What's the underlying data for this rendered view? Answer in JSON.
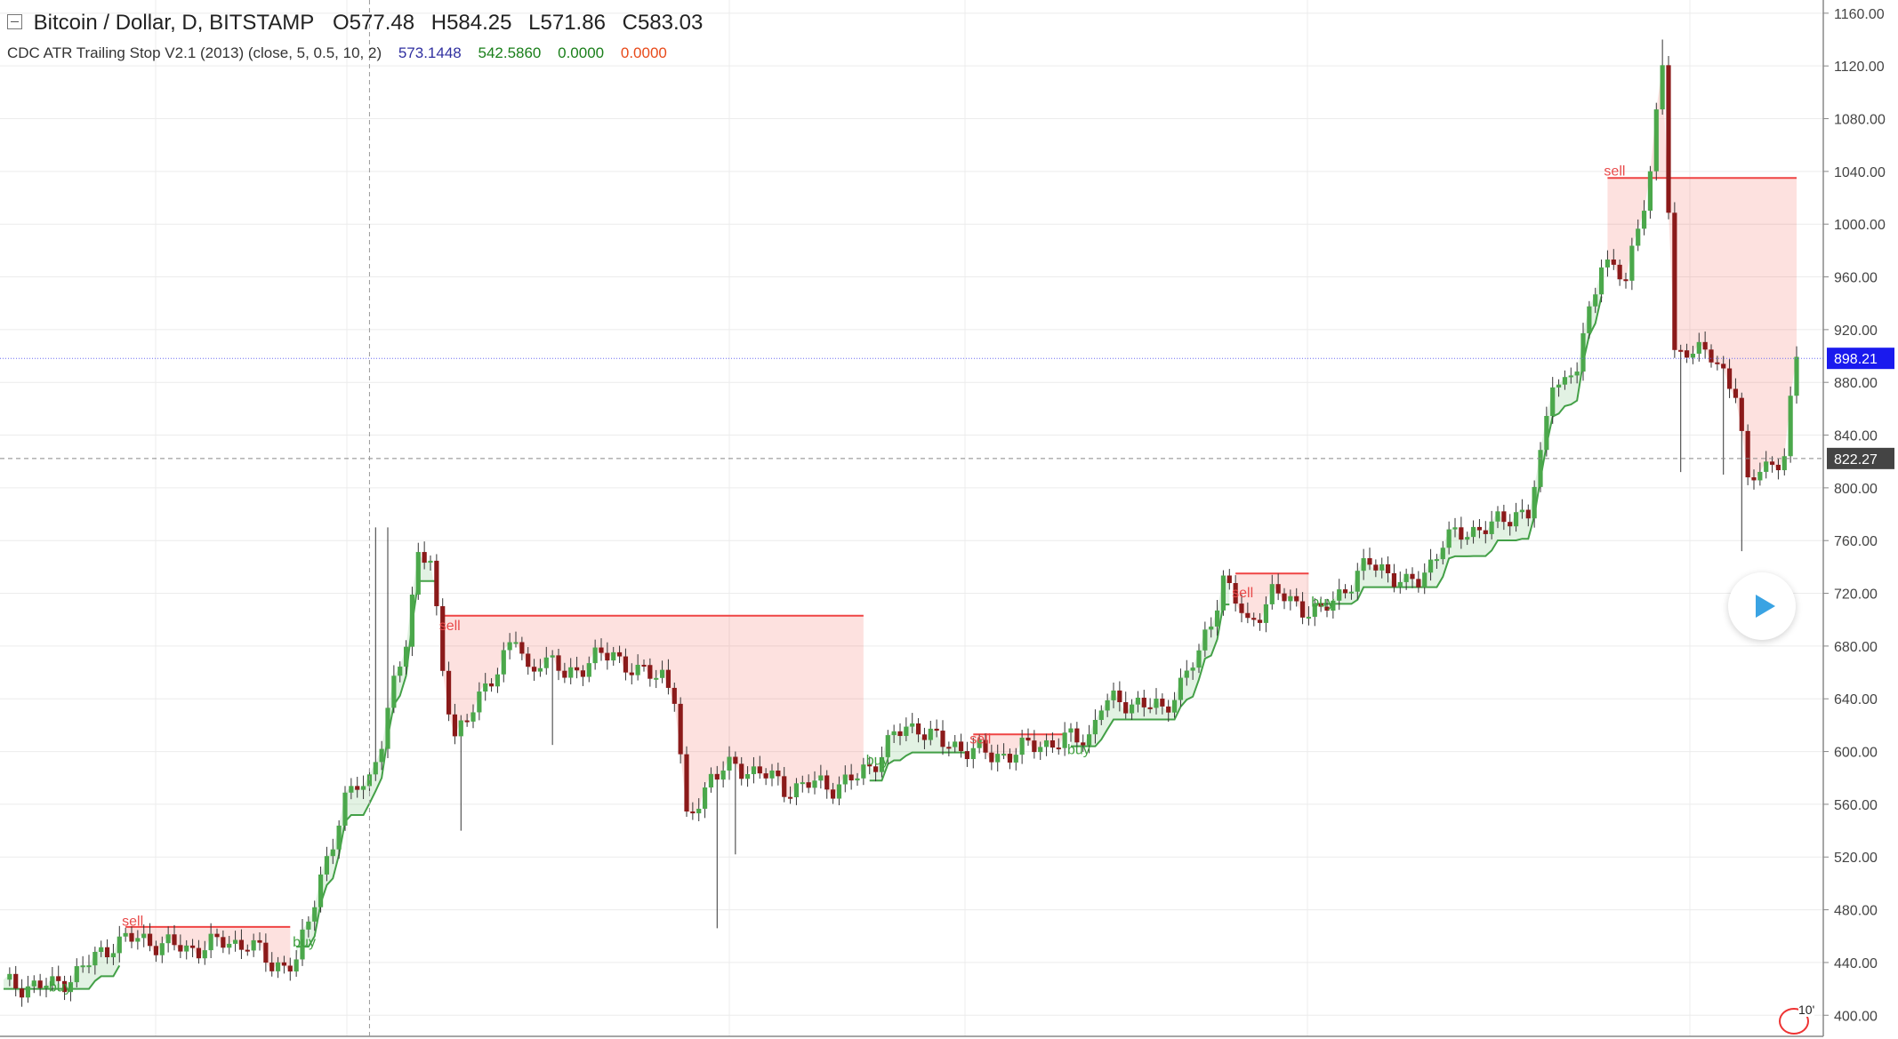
{
  "header": {
    "symbol": "Bitcoin / Dollar, D, BITSTAMP",
    "o_label": "O",
    "o": "577.48",
    "h_label": "H",
    "h": "584.25",
    "l_label": "L",
    "l": "571.86",
    "c_label": "C",
    "c": "583.03"
  },
  "indicator": {
    "name": "CDC ATR Trailing Stop V2.1 (2013) (close, 5, 0.5, 10, 2)",
    "v1": "573.1448",
    "v1_color": "#3030a0",
    "v2": "542.5860",
    "v2_color": "#1a7f1a",
    "v3": "0.0000",
    "v3_color": "#1a7f1a",
    "v4": "0.0000",
    "v4_color": "#e84a1a"
  },
  "time_badge": "10'",
  "chart_data": {
    "type": "candlestick",
    "ylim": [
      384,
      1170
    ],
    "yticks": [
      "1160.00",
      "1120.00",
      "1080.00",
      "1040.00",
      "1000.00",
      "960.00",
      "920.00",
      "880.00",
      "840.00",
      "800.00",
      "760.00",
      "720.00",
      "680.00",
      "640.00",
      "600.00",
      "560.00",
      "520.00",
      "480.00",
      "440.00",
      "400.00"
    ],
    "tick_values": [
      1160,
      1120,
      1080,
      1040,
      1000,
      960,
      920,
      880,
      840,
      800,
      760,
      720,
      680,
      640,
      600,
      560,
      520,
      480,
      440,
      400
    ],
    "price_label_blue": "898.21",
    "price_value_blue": 898.21,
    "price_label_gray": "822.27",
    "price_value_gray": 822.27,
    "crosshair_bar": 60,
    "bar_count": 270,
    "signal_labels": [
      {
        "text": "buy",
        "bar": 8,
        "price": 418,
        "color": "#3f9f3f"
      },
      {
        "text": "sell",
        "bar": 20,
        "price": 468,
        "color": "#e84a4a"
      },
      {
        "text": "buy",
        "bar": 48,
        "price": 452,
        "color": "#3f9f3f"
      },
      {
        "text": "sell",
        "bar": 72,
        "price": 692,
        "color": "#e84a4a"
      },
      {
        "text": "buy",
        "bar": 142,
        "price": 590,
        "color": "#3f9f3f"
      },
      {
        "text": "sell",
        "bar": 159,
        "price": 606,
        "color": "#e84a4a"
      },
      {
        "text": "buy",
        "bar": 175,
        "price": 598,
        "color": "#3f9f3f"
      },
      {
        "text": "sell",
        "bar": 202,
        "price": 717,
        "color": "#e84a4a"
      },
      {
        "text": "buy",
        "bar": 215,
        "price": 710,
        "color": "#3f9f3f"
      },
      {
        "text": "sell",
        "bar": 263,
        "price": 1037,
        "color": "#e84a4a"
      }
    ],
    "colors": {
      "up": "#4ba84b",
      "down": "#8b1a1a",
      "long_stop": "#43a047",
      "short_stop": "#ef4444",
      "long_fill": "rgba(76,175,80,0.16)",
      "short_fill": "rgba(244,67,54,0.16)",
      "grid": "#ececec",
      "axis": "#999999",
      "blue_badge": "#1a1aee",
      "gray_badge": "#444444"
    },
    "anchors": [
      [
        0,
        423
      ],
      [
        8,
        422
      ],
      [
        12,
        432
      ],
      [
        18,
        455
      ],
      [
        22,
        458
      ],
      [
        30,
        450
      ],
      [
        36,
        455
      ],
      [
        40,
        455
      ],
      [
        44,
        438
      ],
      [
        48,
        440
      ],
      [
        50,
        470
      ],
      [
        52,
        508
      ],
      [
        54,
        530
      ],
      [
        56,
        560
      ],
      [
        58,
        578
      ],
      [
        60,
        580
      ],
      [
        62,
        605
      ],
      [
        64,
        650
      ],
      [
        66,
        688
      ],
      [
        68,
        748
      ],
      [
        70,
        743
      ],
      [
        72,
        662
      ],
      [
        74,
        614
      ],
      [
        76,
        622
      ],
      [
        80,
        658
      ],
      [
        84,
        685
      ],
      [
        86,
        660
      ],
      [
        88,
        672
      ],
      [
        92,
        658
      ],
      [
        96,
        668
      ],
      [
        100,
        675
      ],
      [
        104,
        658
      ],
      [
        108,
        660
      ],
      [
        110,
        642
      ],
      [
        112,
        545
      ],
      [
        116,
        582
      ],
      [
        120,
        588
      ],
      [
        124,
        585
      ],
      [
        128,
        572
      ],
      [
        132,
        575
      ],
      [
        136,
        574
      ],
      [
        140,
        580
      ],
      [
        142,
        588
      ],
      [
        146,
        612
      ],
      [
        150,
        620
      ],
      [
        154,
        605
      ],
      [
        158,
        603
      ],
      [
        162,
        596
      ],
      [
        166,
        600
      ],
      [
        170,
        606
      ],
      [
        174,
        608
      ],
      [
        178,
        612
      ],
      [
        180,
        636
      ],
      [
        186,
        638
      ],
      [
        190,
        630
      ],
      [
        192,
        645
      ],
      [
        194,
        660
      ],
      [
        196,
        672
      ],
      [
        198,
        700
      ],
      [
        200,
        732
      ],
      [
        204,
        695
      ],
      [
        208,
        720
      ],
      [
        212,
        712
      ],
      [
        216,
        704
      ],
      [
        220,
        725
      ],
      [
        224,
        742
      ],
      [
        226,
        740
      ],
      [
        230,
        725
      ],
      [
        232,
        730
      ],
      [
        236,
        758
      ],
      [
        240,
        768
      ],
      [
        244,
        770
      ],
      [
        248,
        782
      ],
      [
        250,
        780
      ],
      [
        252,
        820
      ],
      [
        254,
        885
      ],
      [
        256,
        880
      ],
      [
        258,
        890
      ],
      [
        262,
        975
      ],
      [
        266,
        955
      ],
      [
        268,
        1000
      ],
      [
        270,
        1040
      ],
      [
        272,
        1120
      ],
      [
        274,
        900
      ],
      [
        276,
        908
      ],
      [
        280,
        898
      ],
      [
        282,
        888
      ],
      [
        284,
        875
      ],
      [
        286,
        800
      ],
      [
        288,
        815
      ],
      [
        290,
        820
      ],
      [
        292,
        822
      ],
      [
        294,
        898
      ]
    ],
    "spikes": [
      {
        "bar": 61,
        "price": 770
      },
      {
        "bar": 63,
        "price": 770
      },
      {
        "bar": 75,
        "price": 540
      },
      {
        "bar": 90,
        "price": 605
      },
      {
        "bar": 117,
        "price": 466
      },
      {
        "bar": 120,
        "price": 522
      },
      {
        "bar": 272,
        "price": 1140
      },
      {
        "bar": 275,
        "price": 812
      },
      {
        "bar": 285,
        "price": 752
      },
      {
        "bar": 282,
        "price": 810
      }
    ],
    "stop_segments": [
      {
        "kind": "long",
        "from": 0,
        "to": 19,
        "start": 420
      },
      {
        "kind": "short",
        "from": 20,
        "to": 47,
        "val": 467
      },
      {
        "kind": "long",
        "from": 48,
        "to": 71,
        "start": 452
      },
      {
        "kind": "short",
        "from": 72,
        "to": 141,
        "val": 703
      },
      {
        "kind": "long",
        "from": 142,
        "to": 158,
        "start": 578
      },
      {
        "kind": "short",
        "from": 159,
        "to": 174,
        "val": 613
      },
      {
        "kind": "long",
        "from": 175,
        "to": 201,
        "start": 604
      },
      {
        "kind": "short",
        "from": 202,
        "to": 214,
        "val": 735
      },
      {
        "kind": "long",
        "from": 215,
        "to": 262,
        "start": 712
      },
      {
        "kind": "short",
        "from": 263,
        "to": 294,
        "val": 1035
      }
    ]
  }
}
